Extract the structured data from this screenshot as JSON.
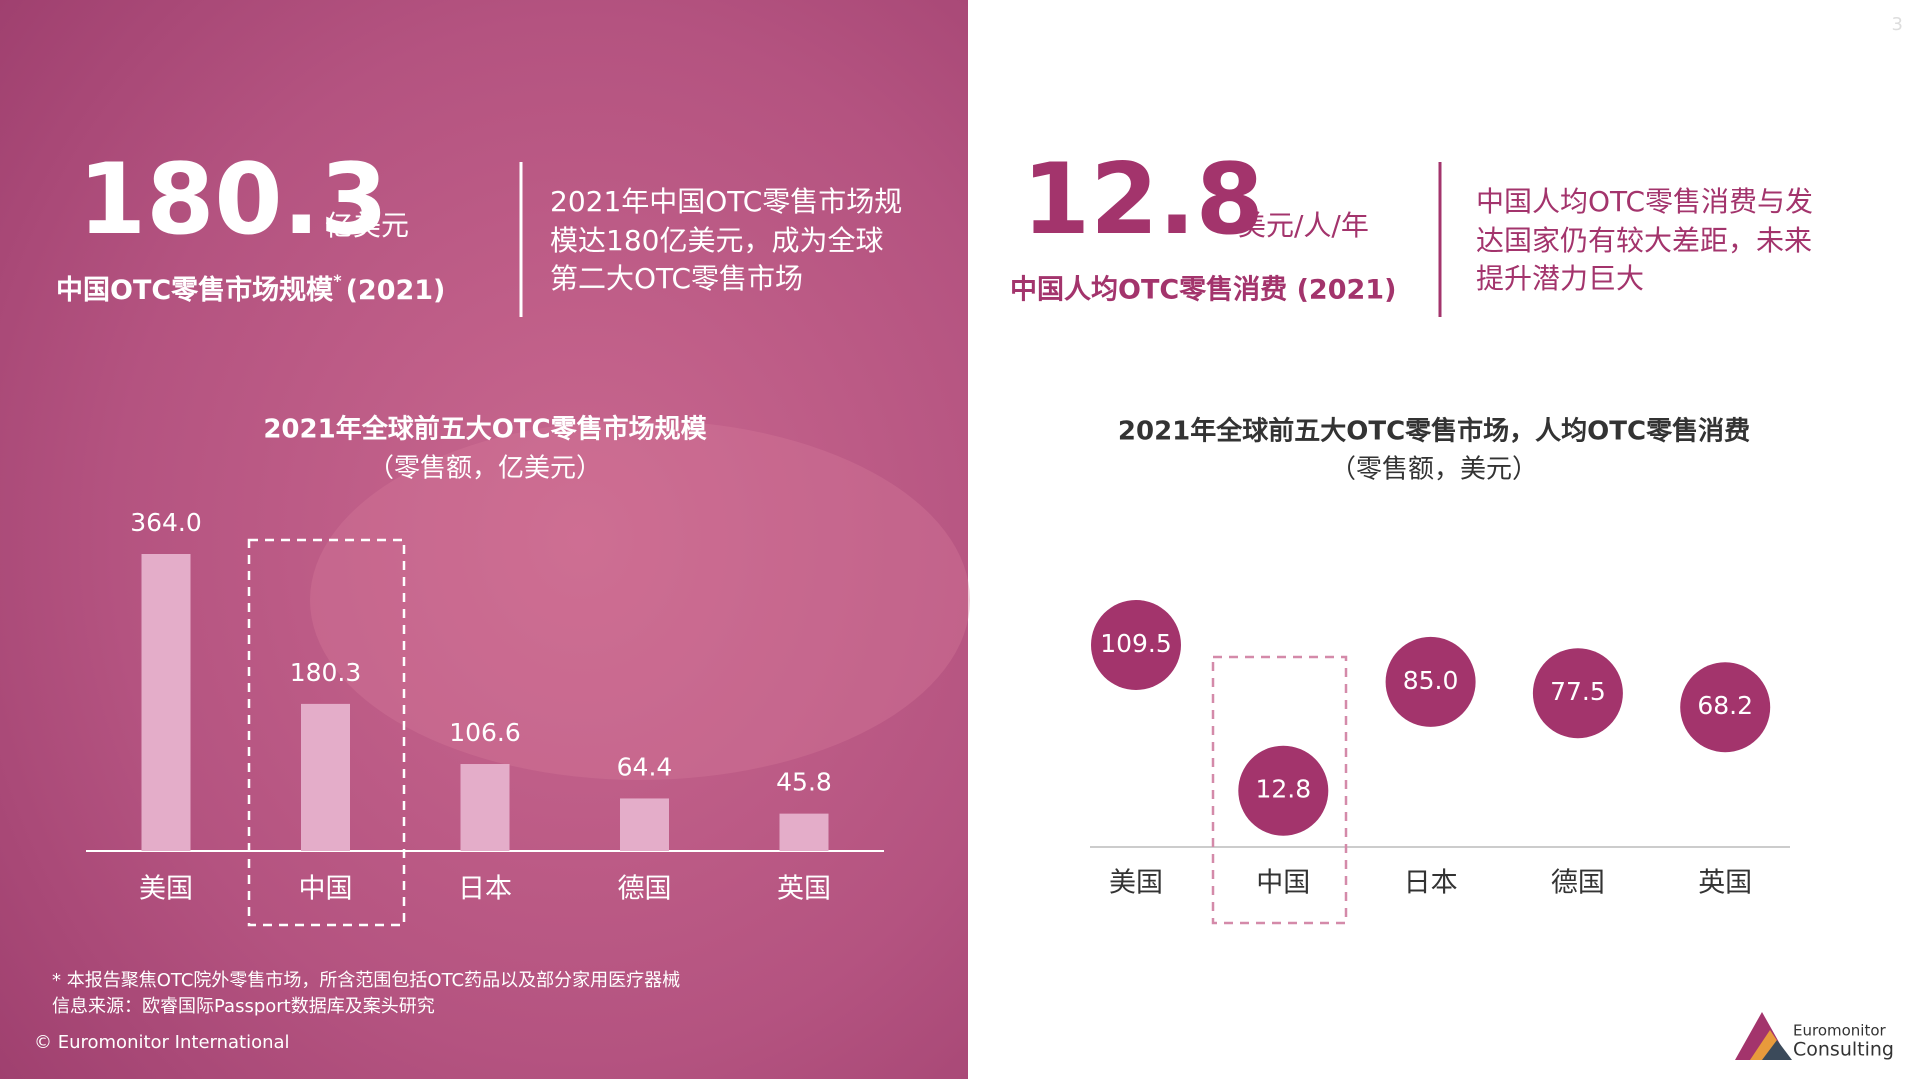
{
  "left_panel": {
    "headline_value": "180.3",
    "headline_unit": "亿美元",
    "headline_caption": "中国OTC零售市场规模",
    "headline_caption_mark": "*",
    "headline_caption_year": "(2021)",
    "summary_lines": [
      "2021年中国OTC零售市场规",
      "模达180亿美元，成为全球",
      "第二大OTC零售市场"
    ]
  },
  "right_panel": {
    "headline_value": "12.8",
    "headline_unit": "美元/人/年",
    "headline_caption": "中国人均OTC零售消费 (2021)",
    "summary_lines": [
      "中国人均OTC零售消费与发",
      "达国家仍有较大差距，未来",
      "提升潜力巨大"
    ]
  },
  "chart_data": [
    {
      "type": "bar",
      "title": "2021年全球前五大OTC零售市场规模",
      "subtitle": "（零售额，亿美元）",
      "categories": [
        "美国",
        "中国",
        "日本",
        "德国",
        "英国"
      ],
      "values": [
        364.0,
        180.3,
        106.6,
        64.4,
        45.8
      ],
      "value_labels": [
        "364.0",
        "180.3",
        "106.6",
        "64.4",
        "45.8"
      ],
      "color": "#e4adc9",
      "highlight": "中国"
    },
    {
      "type": "bubble",
      "title": "2021年全球前五大OTC零售市场，人均OTC零售消费",
      "subtitle": "（零售额，美元）",
      "categories": [
        "美国",
        "中国",
        "日本",
        "德国",
        "英国"
      ],
      "values": [
        109.5,
        12.8,
        85.0,
        77.5,
        68.2
      ],
      "value_labels": [
        "109.5",
        "12.8",
        "85.0",
        "77.5",
        "68.2"
      ],
      "color": "#a3346c",
      "highlight": "中国"
    }
  ],
  "footnotes": [
    "* 本报告聚焦OTC院外零售市场，所含范围包括OTC药品以及部分家用医疗器械",
    "信息来源：欧睿国际Passport数据库及案头研究"
  ],
  "copyright": "© Euromonitor International",
  "page_number": "3",
  "logo": {
    "line1": "Euromonitor",
    "line2": "Consulting"
  }
}
